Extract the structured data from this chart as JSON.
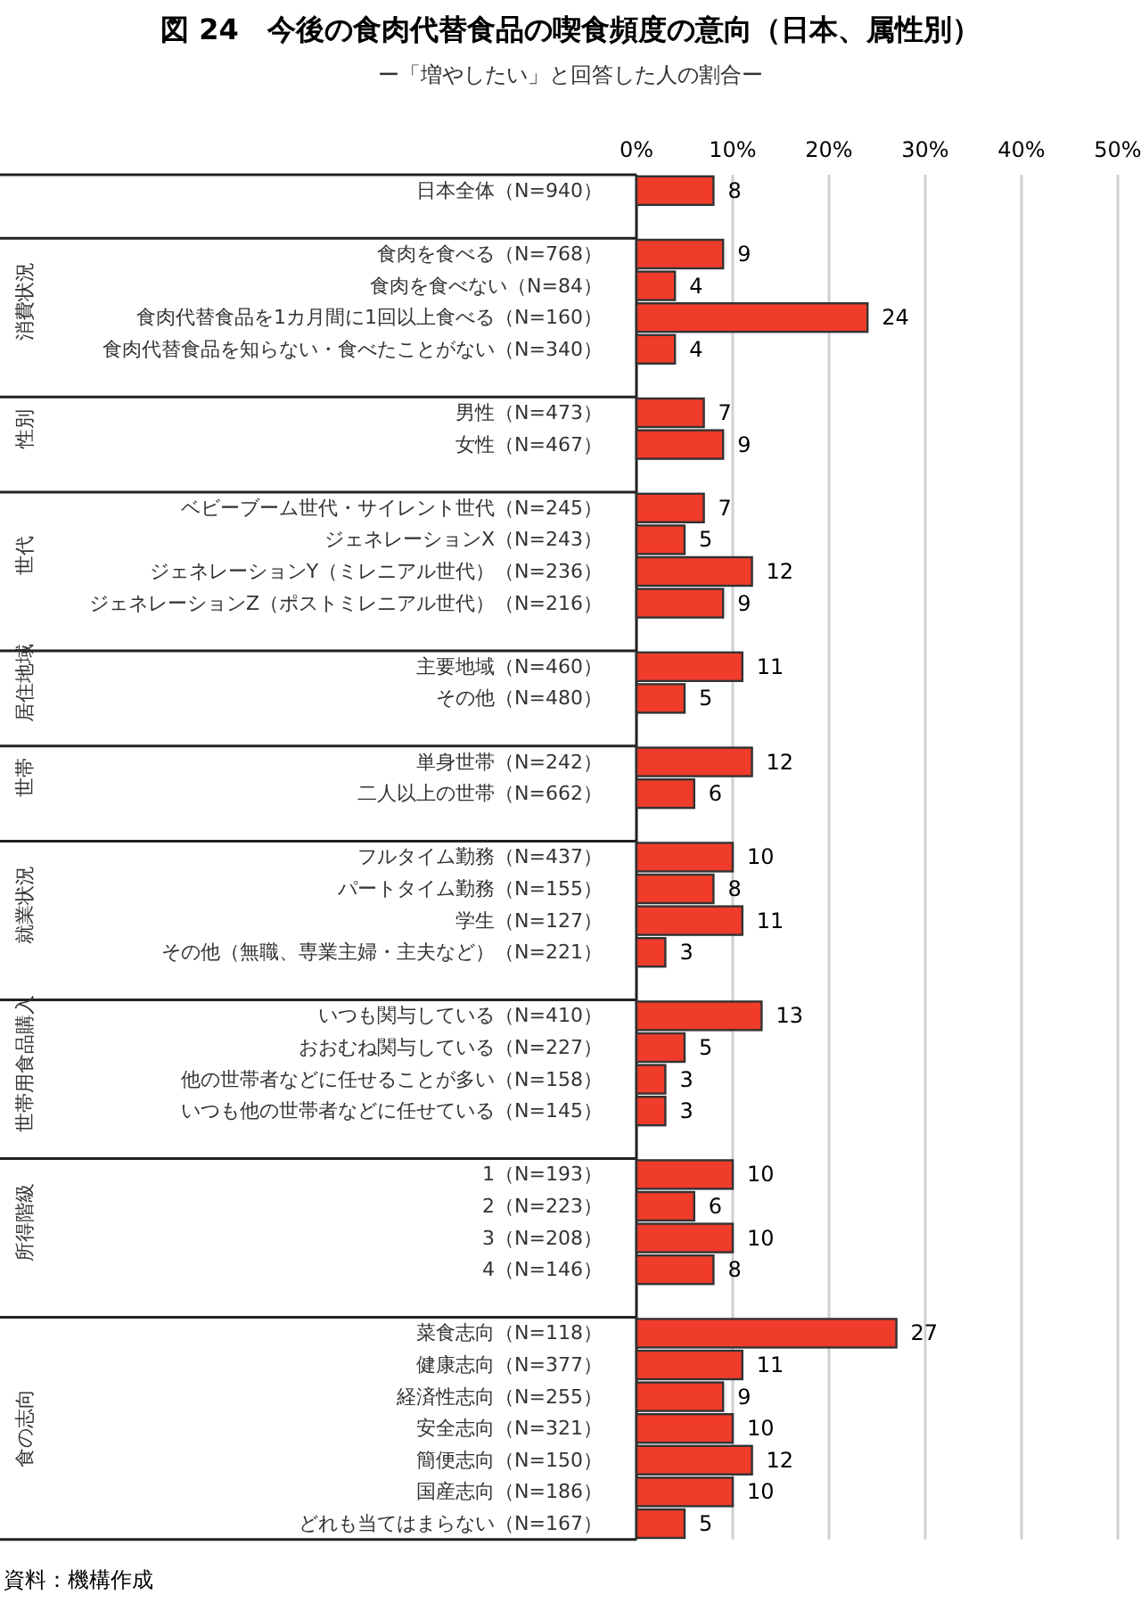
{
  "chart_data": {
    "type": "bar",
    "orientation": "horizontal",
    "title": "図 24　今後の食肉代替食品の喫食頻度の意向（日本、属性別）",
    "subtitle": "ー「増やしたい」と回答した人の割合ー",
    "categories": [
      "日本全体（N=940）",
      null,
      "食肉を食べる（N=768）",
      "食肉を食べない（N=84）",
      "食肉代替食品を1カ月間に1回以上食べる（N=160）",
      "食肉代替食品を知らない・食べたことがない（N=340）",
      null,
      "男性（N=473）",
      "女性（N=467）",
      null,
      "ベビーブーム世代・サイレント世代（N=245）",
      "ジェネレーションX（N=243）",
      "ジェネレーションY（ミレニアル世代）（N=236）",
      "ジェネレーションZ（ポストミレニアル世代）（N=216）",
      null,
      "主要地域（N=460）",
      "その他（N=480）",
      null,
      "単身世帯（N=242）",
      "二人以上の世帯（N=662）",
      null,
      "フルタイム勤務（N=437）",
      "パートタイム勤務（N=155）",
      "学生（N=127）",
      "その他（無職、専業主婦・主夫など）（N=221）",
      null,
      "いつも関与している（N=410）",
      "おおむね関与している（N=227）",
      "他の世帯者などに任せることが多い（N=158）",
      "いつも他の世帯者などに任せている（N=145）",
      null,
      "1（N=193）",
      "2（N=223）",
      "3（N=208）",
      "4（N=146）",
      null,
      "菜食志向（N=118）",
      "健康志向（N=377）",
      "経済性志向（N=255）",
      "安全志向（N=321）",
      "簡便志向（N=150）",
      "国産志向（N=186）",
      "どれも当てはまらない（N=167）"
    ],
    "values": [
      8,
      null,
      9,
      4,
      24,
      4,
      null,
      7,
      9,
      null,
      7,
      5,
      12,
      9,
      null,
      11,
      5,
      null,
      12,
      6,
      null,
      10,
      8,
      11,
      3,
      null,
      13,
      5,
      3,
      3,
      null,
      10,
      6,
      10,
      8,
      null,
      27,
      11,
      9,
      10,
      12,
      10,
      5
    ],
    "color": "#f03c2a",
    "data_labels": true,
    "grid": "x",
    "xlim": [
      0,
      50
    ],
    "xticks": [
      {
        "value": 0,
        "label": "0%"
      },
      {
        "value": 10,
        "label": "10%"
      },
      {
        "value": 20,
        "label": "20%"
      },
      {
        "value": 30,
        "label": "30%"
      },
      {
        "value": 40,
        "label": "40%"
      },
      {
        "value": 50,
        "label": "50%"
      }
    ],
    "annotations": [
      "消費状況",
      "性別",
      "世代",
      "居住地域",
      "世帯",
      "就業状況",
      "世帯用食品購入",
      "所得階級",
      "食の志向",
      "資料：機構作成"
    ]
  }
}
